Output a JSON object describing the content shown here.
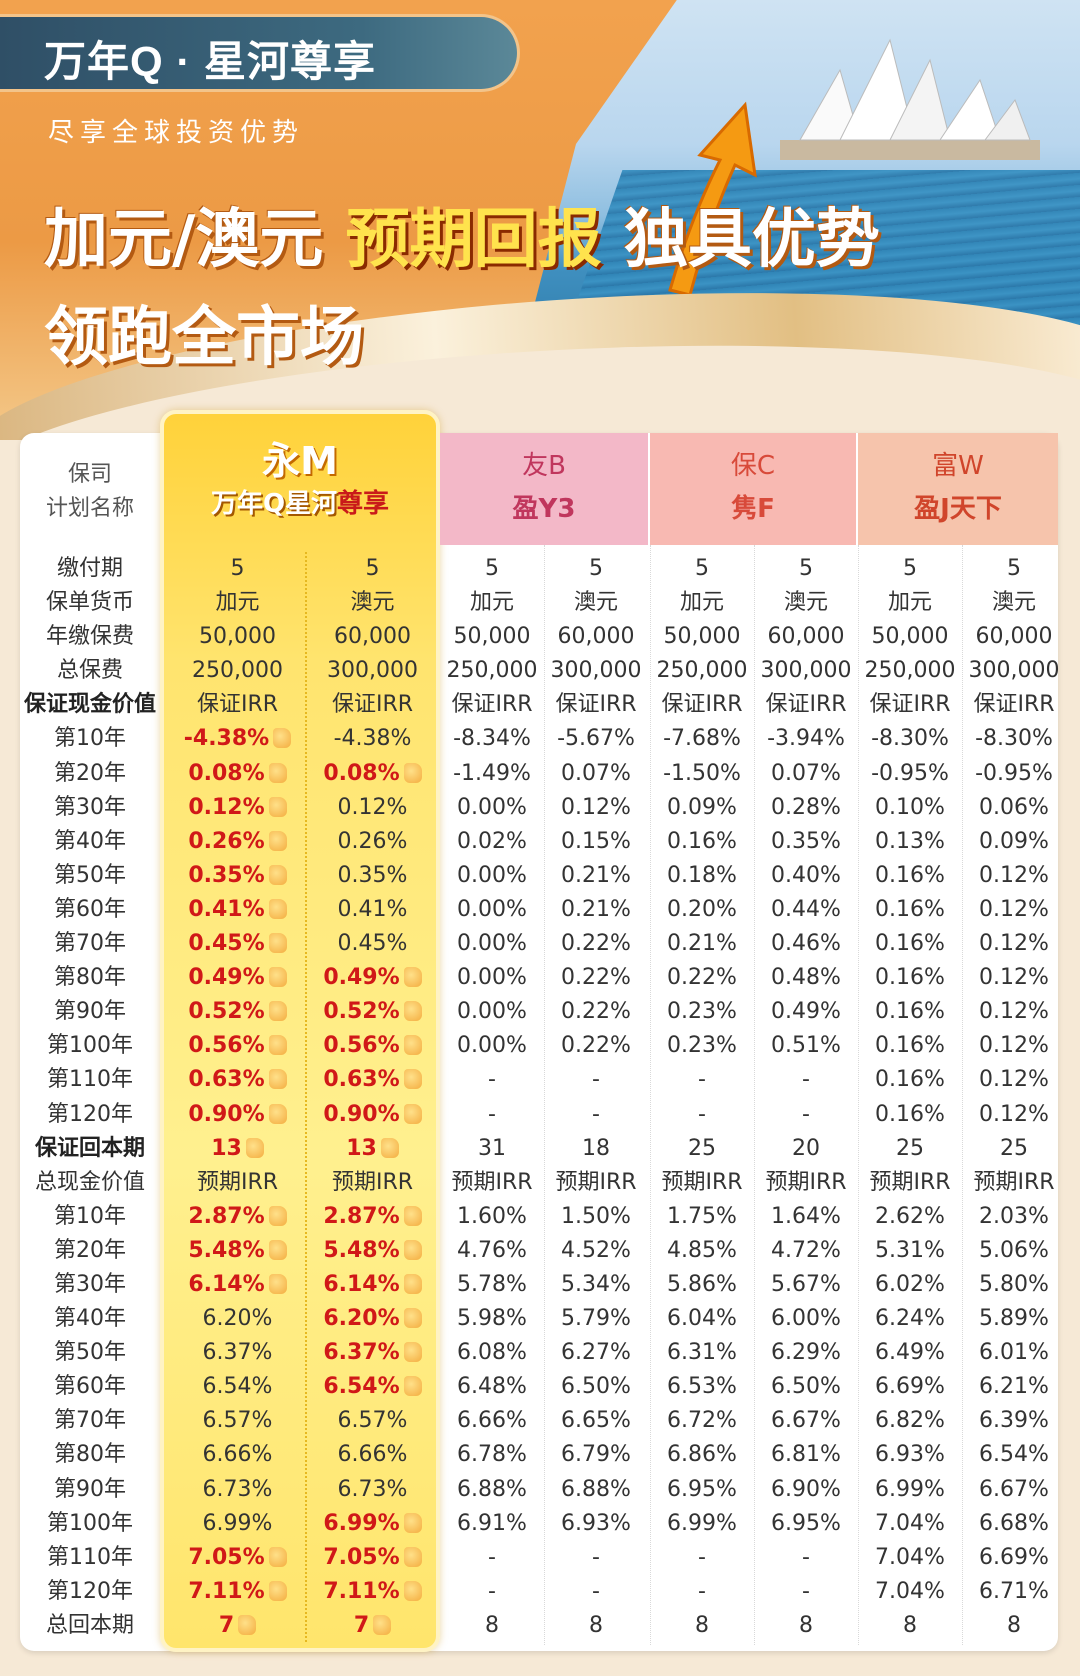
{
  "header": {
    "brand": "万年Q · 星河尊享",
    "subtitle": "尽享全球投资优势",
    "headline_part1": "加元/澳元 ",
    "headline_highlight": "预期回报",
    "headline_part2": " 独具优势",
    "headline_line2": "领跑全市场"
  },
  "table": {
    "head_label_line1": "保司",
    "head_label_line2": "计划名称",
    "companies": [
      {
        "name": "永M",
        "plan": "万年Q星河",
        "plan_emph": "尊享"
      },
      {
        "name": "友B",
        "plan": "盈Y3"
      },
      {
        "name": "保C",
        "plan": "隽F"
      },
      {
        "name": "富W",
        "plan": "盈J天下"
      }
    ],
    "rows": [
      {
        "label": "缴付期",
        "v": [
          "5",
          "5",
          "5",
          "5",
          "5",
          "5",
          "5",
          "5"
        ]
      },
      {
        "label": "保单货币",
        "v": [
          "加元",
          "澳元",
          "加元",
          "澳元",
          "加元",
          "澳元",
          "加元",
          "澳元"
        ]
      },
      {
        "label": "年缴保费",
        "v": [
          "50,000",
          "60,000",
          "50,000",
          "60,000",
          "50,000",
          "60,000",
          "50,000",
          "60,000"
        ]
      },
      {
        "label": "总保费",
        "v": [
          "250,000",
          "300,000",
          "250,000",
          "300,000",
          "250,000",
          "300,000",
          "250,000",
          "300,000"
        ]
      },
      {
        "label": "保证现金价值",
        "bold": true,
        "v": [
          "保证IRR",
          "保证IRR",
          "保证IRR",
          "保证IRR",
          "保证IRR",
          "保证IRR",
          "保证IRR",
          "保证IRR"
        ]
      },
      {
        "label": "第10年",
        "v": [
          "-4.38%",
          "-4.38%",
          "-8.34%",
          "-5.67%",
          "-7.68%",
          "-3.94%",
          "-8.30%",
          "-8.30%"
        ],
        "r": [
          true,
          false
        ],
        "t": [
          true,
          false
        ]
      },
      {
        "label": "第20年",
        "v": [
          "0.08%",
          "0.08%",
          "-1.49%",
          "0.07%",
          "-1.50%",
          "0.07%",
          "-0.95%",
          "-0.95%"
        ],
        "r": [
          true,
          true
        ],
        "t": [
          true,
          true
        ]
      },
      {
        "label": "第30年",
        "v": [
          "0.12%",
          "0.12%",
          "0.00%",
          "0.12%",
          "0.09%",
          "0.28%",
          "0.10%",
          "0.06%"
        ],
        "r": [
          true,
          false
        ],
        "t": [
          true,
          false
        ]
      },
      {
        "label": "第40年",
        "v": [
          "0.26%",
          "0.26%",
          "0.02%",
          "0.15%",
          "0.16%",
          "0.35%",
          "0.13%",
          "0.09%"
        ],
        "r": [
          true,
          false
        ],
        "t": [
          true,
          false
        ]
      },
      {
        "label": "第50年",
        "v": [
          "0.35%",
          "0.35%",
          "0.00%",
          "0.21%",
          "0.18%",
          "0.40%",
          "0.16%",
          "0.12%"
        ],
        "r": [
          true,
          false
        ],
        "t": [
          true,
          false
        ]
      },
      {
        "label": "第60年",
        "v": [
          "0.41%",
          "0.41%",
          "0.00%",
          "0.21%",
          "0.20%",
          "0.44%",
          "0.16%",
          "0.12%"
        ],
        "r": [
          true,
          false
        ],
        "t": [
          true,
          false
        ]
      },
      {
        "label": "第70年",
        "v": [
          "0.45%",
          "0.45%",
          "0.00%",
          "0.22%",
          "0.21%",
          "0.46%",
          "0.16%",
          "0.12%"
        ],
        "r": [
          true,
          false
        ],
        "t": [
          true,
          false
        ]
      },
      {
        "label": "第80年",
        "v": [
          "0.49%",
          "0.49%",
          "0.00%",
          "0.22%",
          "0.22%",
          "0.48%",
          "0.16%",
          "0.12%"
        ],
        "r": [
          true,
          true
        ],
        "t": [
          true,
          true
        ]
      },
      {
        "label": "第90年",
        "v": [
          "0.52%",
          "0.52%",
          "0.00%",
          "0.22%",
          "0.23%",
          "0.49%",
          "0.16%",
          "0.12%"
        ],
        "r": [
          true,
          true
        ],
        "t": [
          true,
          true
        ]
      },
      {
        "label": "第100年",
        "v": [
          "0.56%",
          "0.56%",
          "0.00%",
          "0.22%",
          "0.23%",
          "0.51%",
          "0.16%",
          "0.12%"
        ],
        "r": [
          true,
          true
        ],
        "t": [
          true,
          true
        ]
      },
      {
        "label": "第110年",
        "v": [
          "0.63%",
          "0.63%",
          "-",
          "-",
          "-",
          "-",
          "0.16%",
          "0.12%"
        ],
        "r": [
          true,
          true
        ],
        "t": [
          true,
          true
        ]
      },
      {
        "label": "第120年",
        "v": [
          "0.90%",
          "0.90%",
          "-",
          "-",
          "-",
          "-",
          "0.16%",
          "0.12%"
        ],
        "r": [
          true,
          true
        ],
        "t": [
          true,
          true
        ]
      },
      {
        "label": "保证回本期",
        "bold": true,
        "v": [
          "13",
          "13",
          "31",
          "18",
          "25",
          "20",
          "25",
          "25"
        ],
        "r": [
          true,
          true
        ],
        "t": [
          true,
          true
        ]
      },
      {
        "label": "总现金价值",
        "v": [
          "预期IRR",
          "预期IRR",
          "预期IRR",
          "预期IRR",
          "预期IRR",
          "预期IRR",
          "预期IRR",
          "预期IRR"
        ]
      },
      {
        "label": "第10年",
        "v": [
          "2.87%",
          "2.87%",
          "1.60%",
          "1.50%",
          "1.75%",
          "1.64%",
          "2.62%",
          "2.03%"
        ],
        "r": [
          true,
          true
        ],
        "t": [
          true,
          true
        ]
      },
      {
        "label": "第20年",
        "v": [
          "5.48%",
          "5.48%",
          "4.76%",
          "4.52%",
          "4.85%",
          "4.72%",
          "5.31%",
          "5.06%"
        ],
        "r": [
          true,
          true
        ],
        "t": [
          true,
          true
        ]
      },
      {
        "label": "第30年",
        "v": [
          "6.14%",
          "6.14%",
          "5.78%",
          "5.34%",
          "5.86%",
          "5.67%",
          "6.02%",
          "5.80%"
        ],
        "r": [
          true,
          true
        ],
        "t": [
          true,
          true
        ]
      },
      {
        "label": "第40年",
        "v": [
          "6.20%",
          "6.20%",
          "5.98%",
          "5.79%",
          "6.04%",
          "6.00%",
          "6.24%",
          "5.89%"
        ],
        "r": [
          false,
          true
        ],
        "t": [
          false,
          true
        ]
      },
      {
        "label": "第50年",
        "v": [
          "6.37%",
          "6.37%",
          "6.08%",
          "6.27%",
          "6.31%",
          "6.29%",
          "6.49%",
          "6.01%"
        ],
        "r": [
          false,
          true
        ],
        "t": [
          false,
          true
        ]
      },
      {
        "label": "第60年",
        "v": [
          "6.54%",
          "6.54%",
          "6.48%",
          "6.50%",
          "6.53%",
          "6.50%",
          "6.69%",
          "6.21%"
        ],
        "r": [
          false,
          true
        ],
        "t": [
          false,
          true
        ]
      },
      {
        "label": "第70年",
        "v": [
          "6.57%",
          "6.57%",
          "6.66%",
          "6.65%",
          "6.72%",
          "6.67%",
          "6.82%",
          "6.39%"
        ]
      },
      {
        "label": "第80年",
        "v": [
          "6.66%",
          "6.66%",
          "6.78%",
          "6.79%",
          "6.86%",
          "6.81%",
          "6.93%",
          "6.54%"
        ]
      },
      {
        "label": "第90年",
        "v": [
          "6.73%",
          "6.73%",
          "6.88%",
          "6.88%",
          "6.95%",
          "6.90%",
          "6.99%",
          "6.67%"
        ]
      },
      {
        "label": "第100年",
        "v": [
          "6.99%",
          "6.99%",
          "6.91%",
          "6.93%",
          "6.99%",
          "6.95%",
          "7.04%",
          "6.68%"
        ],
        "r": [
          false,
          true
        ],
        "t": [
          false,
          true
        ]
      },
      {
        "label": "第110年",
        "v": [
          "7.05%",
          "7.05%",
          "-",
          "-",
          "-",
          "-",
          "7.04%",
          "6.69%"
        ],
        "r": [
          true,
          true
        ],
        "t": [
          true,
          true
        ]
      },
      {
        "label": "第120年",
        "v": [
          "7.11%",
          "7.11%",
          "-",
          "-",
          "-",
          "-",
          "7.04%",
          "6.71%"
        ],
        "r": [
          true,
          true
        ],
        "t": [
          true,
          true
        ]
      },
      {
        "label": "总回本期",
        "v": [
          "7",
          "7",
          "8",
          "8",
          "8",
          "8",
          "8",
          "8"
        ],
        "r": [
          true,
          true
        ],
        "t": [
          true,
          true
        ]
      }
    ]
  },
  "colors": {
    "highlight": "#ffe46e",
    "red": "#d01818",
    "pink_header": "#f3b8c8",
    "salmon_header": "#f8b9b2",
    "peach_header": "#f6c4ac"
  }
}
